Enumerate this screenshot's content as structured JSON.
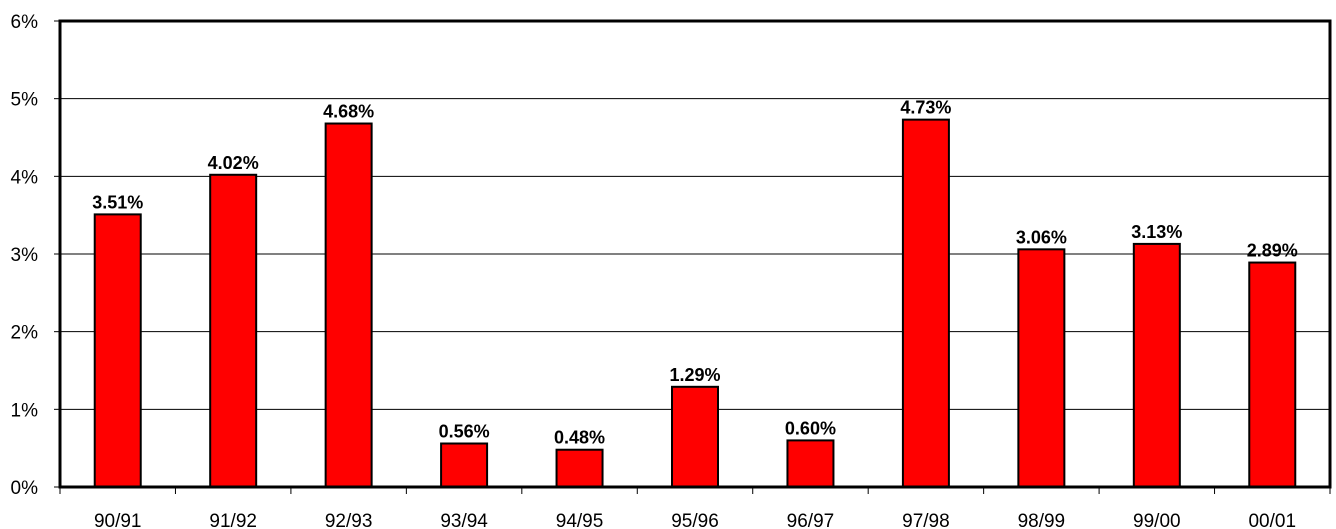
{
  "chart_data": {
    "type": "bar",
    "categories": [
      "90/91",
      "91/92",
      "92/93",
      "93/94",
      "94/95",
      "95/96",
      "96/97",
      "97/98",
      "98/99",
      "99/00",
      "00/01"
    ],
    "values": [
      3.51,
      4.02,
      4.68,
      0.56,
      0.48,
      1.29,
      0.6,
      4.73,
      3.06,
      3.13,
      2.89
    ],
    "data_labels": [
      "3.51%",
      "4.02%",
      "4.68%",
      "0.56%",
      "0.48%",
      "1.29%",
      "0.60%",
      "4.73%",
      "3.06%",
      "3.13%",
      "2.89%"
    ],
    "y_tick_values": [
      0,
      1,
      2,
      3,
      4,
      5,
      6
    ],
    "y_tick_labels": [
      "0%",
      "1%",
      "2%",
      "3%",
      "4%",
      "5%",
      "6%"
    ],
    "ylim": [
      0,
      6
    ],
    "grid": true,
    "legend": "none",
    "title": "",
    "xlabel": "",
    "ylabel": "",
    "colors": {
      "bar_fill": "#ff0000",
      "bar_stroke": "#000000",
      "gridline": "#000000",
      "frame": "#000000"
    }
  }
}
